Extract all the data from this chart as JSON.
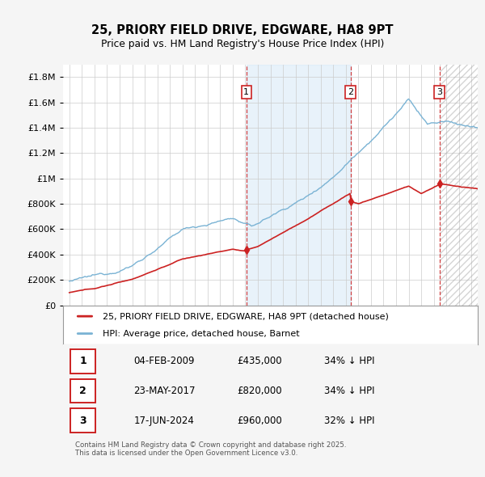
{
  "title": "25, PRIORY FIELD DRIVE, EDGWARE, HA8 9PT",
  "subtitle": "Price paid vs. HM Land Registry's House Price Index (HPI)",
  "ylim": [
    0,
    1900000
  ],
  "ytick_labels": [
    "£0",
    "£200K",
    "£400K",
    "£600K",
    "£800K",
    "£1M",
    "£1.2M",
    "£1.4M",
    "£1.6M",
    "£1.8M"
  ],
  "ytick_values": [
    0,
    200000,
    400000,
    600000,
    800000,
    1000000,
    1200000,
    1400000,
    1600000,
    1800000
  ],
  "hpi_color": "#7ab3d4",
  "price_color": "#cc2222",
  "vline_color": "#cc2222",
  "sale_dates_num": [
    2009.09,
    2017.39,
    2024.46
  ],
  "sale_prices": [
    435000,
    820000,
    960000
  ],
  "sale_labels": [
    "1",
    "2",
    "3"
  ],
  "legend_entries": [
    "25, PRIORY FIELD DRIVE, EDGWARE, HA8 9PT (detached house)",
    "HPI: Average price, detached house, Barnet"
  ],
  "table_data": [
    [
      "1",
      "04-FEB-2009",
      "£435,000",
      "34% ↓ HPI"
    ],
    [
      "2",
      "23-MAY-2017",
      "£820,000",
      "34% ↓ HPI"
    ],
    [
      "3",
      "17-JUN-2024",
      "£960,000",
      "32% ↓ HPI"
    ]
  ],
  "footer": "Contains HM Land Registry data © Crown copyright and database right 2025.\nThis data is licensed under the Open Government Licence v3.0.",
  "bg_color": "#f5f5f5"
}
